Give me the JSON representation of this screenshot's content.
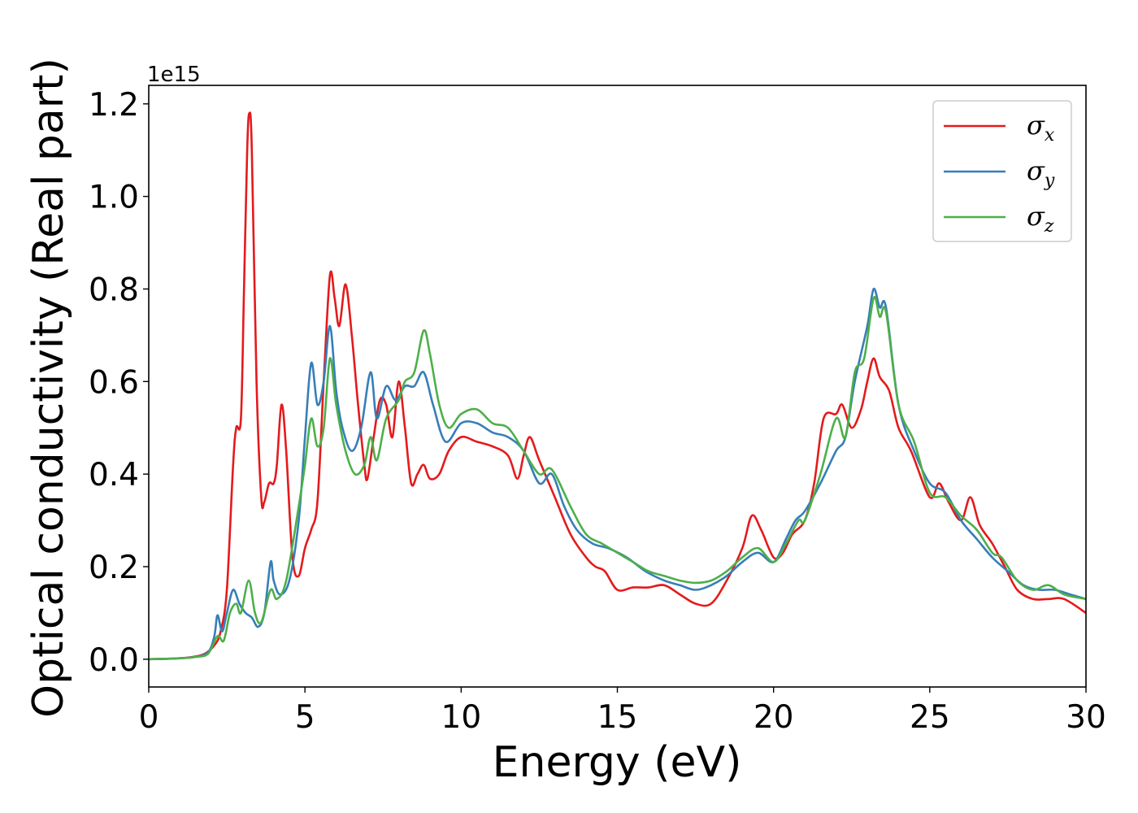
{
  "chart_data": {
    "type": "line",
    "title": "",
    "xlabel": "Energy (eV)",
    "ylabel": "Optical conductivity (Real part)",
    "offset_text": "1e15",
    "xlim": [
      0,
      30
    ],
    "ylim": [
      -0.06,
      1.24
    ],
    "y_scale_factor": 1000000000000000.0,
    "x_ticks": [
      0,
      5,
      10,
      15,
      20,
      25,
      30
    ],
    "x_tick_labels": [
      "0",
      "5",
      "10",
      "15",
      "20",
      "25",
      "30"
    ],
    "y_ticks": [
      0.0,
      0.2,
      0.4,
      0.6,
      0.8,
      1.0,
      1.2
    ],
    "y_tick_labels": [
      "0.0",
      "0.2",
      "0.4",
      "0.6",
      "0.8",
      "1.0",
      "1.2"
    ],
    "grid": false,
    "legend_position": "top-right",
    "series": [
      {
        "name": "σx",
        "symbol": "σ",
        "subscript": "x",
        "color": "#e41a1c",
        "points": [
          [
            0,
            0
          ],
          [
            1,
            0.002
          ],
          [
            1.5,
            0.006
          ],
          [
            1.8,
            0.012
          ],
          [
            2.1,
            0.03
          ],
          [
            2.3,
            0.06
          ],
          [
            2.5,
            0.15
          ],
          [
            2.7,
            0.42
          ],
          [
            2.8,
            0.5
          ],
          [
            2.95,
            0.52
          ],
          [
            3.05,
            0.8
          ],
          [
            3.15,
            1.1
          ],
          [
            3.22,
            1.18
          ],
          [
            3.3,
            1.1
          ],
          [
            3.45,
            0.6
          ],
          [
            3.6,
            0.35
          ],
          [
            3.7,
            0.34
          ],
          [
            3.85,
            0.38
          ],
          [
            4.0,
            0.38
          ],
          [
            4.1,
            0.42
          ],
          [
            4.25,
            0.55
          ],
          [
            4.4,
            0.45
          ],
          [
            4.6,
            0.22
          ],
          [
            4.8,
            0.18
          ],
          [
            5.0,
            0.24
          ],
          [
            5.2,
            0.28
          ],
          [
            5.4,
            0.34
          ],
          [
            5.6,
            0.6
          ],
          [
            5.8,
            0.83
          ],
          [
            5.95,
            0.78
          ],
          [
            6.1,
            0.72
          ],
          [
            6.3,
            0.81
          ],
          [
            6.5,
            0.7
          ],
          [
            6.7,
            0.55
          ],
          [
            6.9,
            0.42
          ],
          [
            7.0,
            0.39
          ],
          [
            7.2,
            0.48
          ],
          [
            7.4,
            0.56
          ],
          [
            7.6,
            0.55
          ],
          [
            7.8,
            0.48
          ],
          [
            8.0,
            0.6
          ],
          [
            8.2,
            0.5
          ],
          [
            8.4,
            0.38
          ],
          [
            8.6,
            0.4
          ],
          [
            8.8,
            0.42
          ],
          [
            9.0,
            0.39
          ],
          [
            9.3,
            0.4
          ],
          [
            9.6,
            0.45
          ],
          [
            10.0,
            0.48
          ],
          [
            10.5,
            0.47
          ],
          [
            11.0,
            0.46
          ],
          [
            11.5,
            0.44
          ],
          [
            11.8,
            0.39
          ],
          [
            12.0,
            0.44
          ],
          [
            12.2,
            0.48
          ],
          [
            12.5,
            0.43
          ],
          [
            13.0,
            0.35
          ],
          [
            13.5,
            0.27
          ],
          [
            14.0,
            0.22
          ],
          [
            14.3,
            0.2
          ],
          [
            14.6,
            0.19
          ],
          [
            15.0,
            0.15
          ],
          [
            15.5,
            0.155
          ],
          [
            16.0,
            0.155
          ],
          [
            16.5,
            0.16
          ],
          [
            17.0,
            0.14
          ],
          [
            17.5,
            0.12
          ],
          [
            18.0,
            0.12
          ],
          [
            18.5,
            0.17
          ],
          [
            19.0,
            0.24
          ],
          [
            19.3,
            0.31
          ],
          [
            19.6,
            0.28
          ],
          [
            20.0,
            0.22
          ],
          [
            20.3,
            0.23
          ],
          [
            20.6,
            0.27
          ],
          [
            21.0,
            0.3
          ],
          [
            21.3,
            0.38
          ],
          [
            21.6,
            0.52
          ],
          [
            22.0,
            0.53
          ],
          [
            22.2,
            0.55
          ],
          [
            22.5,
            0.5
          ],
          [
            22.8,
            0.54
          ],
          [
            23.0,
            0.6
          ],
          [
            23.2,
            0.65
          ],
          [
            23.4,
            0.61
          ],
          [
            23.7,
            0.58
          ],
          [
            24.0,
            0.5
          ],
          [
            24.4,
            0.45
          ],
          [
            25.0,
            0.35
          ],
          [
            25.3,
            0.38
          ],
          [
            25.6,
            0.34
          ],
          [
            26.0,
            0.3
          ],
          [
            26.3,
            0.35
          ],
          [
            26.6,
            0.29
          ],
          [
            27.0,
            0.25
          ],
          [
            27.4,
            0.2
          ],
          [
            27.8,
            0.15
          ],
          [
            28.3,
            0.13
          ],
          [
            28.8,
            0.13
          ],
          [
            29.3,
            0.13
          ],
          [
            30.0,
            0.1
          ]
        ]
      },
      {
        "name": "σy",
        "symbol": "σ",
        "subscript": "y",
        "color": "#377eb8",
        "points": [
          [
            0,
            0
          ],
          [
            1,
            0.002
          ],
          [
            1.5,
            0.005
          ],
          [
            1.9,
            0.015
          ],
          [
            2.1,
            0.05
          ],
          [
            2.2,
            0.095
          ],
          [
            2.35,
            0.06
          ],
          [
            2.5,
            0.1
          ],
          [
            2.7,
            0.15
          ],
          [
            2.9,
            0.12
          ],
          [
            3.1,
            0.1
          ],
          [
            3.3,
            0.09
          ],
          [
            3.5,
            0.07
          ],
          [
            3.7,
            0.1
          ],
          [
            3.9,
            0.21
          ],
          [
            4.0,
            0.17
          ],
          [
            4.2,
            0.14
          ],
          [
            4.5,
            0.17
          ],
          [
            4.8,
            0.3
          ],
          [
            5.0,
            0.48
          ],
          [
            5.2,
            0.64
          ],
          [
            5.4,
            0.55
          ],
          [
            5.6,
            0.6
          ],
          [
            5.8,
            0.72
          ],
          [
            6.0,
            0.58
          ],
          [
            6.2,
            0.5
          ],
          [
            6.5,
            0.45
          ],
          [
            6.8,
            0.5
          ],
          [
            7.1,
            0.62
          ],
          [
            7.3,
            0.52
          ],
          [
            7.6,
            0.59
          ],
          [
            7.9,
            0.56
          ],
          [
            8.2,
            0.59
          ],
          [
            8.5,
            0.59
          ],
          [
            8.8,
            0.62
          ],
          [
            9.1,
            0.55
          ],
          [
            9.5,
            0.47
          ],
          [
            10.0,
            0.51
          ],
          [
            10.5,
            0.51
          ],
          [
            11.0,
            0.49
          ],
          [
            11.5,
            0.48
          ],
          [
            12.0,
            0.45
          ],
          [
            12.5,
            0.38
          ],
          [
            12.9,
            0.4
          ],
          [
            13.3,
            0.33
          ],
          [
            13.7,
            0.28
          ],
          [
            14.2,
            0.25
          ],
          [
            14.7,
            0.24
          ],
          [
            15.3,
            0.22
          ],
          [
            15.9,
            0.19
          ],
          [
            16.5,
            0.17
          ],
          [
            17.0,
            0.16
          ],
          [
            17.5,
            0.15
          ],
          [
            18.0,
            0.16
          ],
          [
            18.5,
            0.18
          ],
          [
            19.0,
            0.21
          ],
          [
            19.5,
            0.23
          ],
          [
            20.0,
            0.21
          ],
          [
            20.4,
            0.26
          ],
          [
            20.7,
            0.3
          ],
          [
            21.0,
            0.32
          ],
          [
            21.5,
            0.38
          ],
          [
            22.0,
            0.45
          ],
          [
            22.3,
            0.48
          ],
          [
            22.6,
            0.6
          ],
          [
            23.0,
            0.72
          ],
          [
            23.2,
            0.8
          ],
          [
            23.4,
            0.76
          ],
          [
            23.6,
            0.76
          ],
          [
            24.0,
            0.55
          ],
          [
            24.5,
            0.45
          ],
          [
            25.0,
            0.38
          ],
          [
            25.5,
            0.36
          ],
          [
            26.0,
            0.3
          ],
          [
            26.5,
            0.26
          ],
          [
            27.0,
            0.22
          ],
          [
            27.5,
            0.19
          ],
          [
            28.0,
            0.16
          ],
          [
            28.5,
            0.15
          ],
          [
            29.0,
            0.15
          ],
          [
            29.5,
            0.14
          ],
          [
            30.0,
            0.13
          ]
        ]
      },
      {
        "name": "σz",
        "symbol": "σ",
        "subscript": "z",
        "color": "#4daf4a",
        "points": [
          [
            0,
            0
          ],
          [
            1,
            0.002
          ],
          [
            1.5,
            0.005
          ],
          [
            1.9,
            0.012
          ],
          [
            2.2,
            0.05
          ],
          [
            2.4,
            0.04
          ],
          [
            2.6,
            0.1
          ],
          [
            2.8,
            0.12
          ],
          [
            2.95,
            0.1
          ],
          [
            3.2,
            0.17
          ],
          [
            3.4,
            0.1
          ],
          [
            3.6,
            0.08
          ],
          [
            3.9,
            0.15
          ],
          [
            4.1,
            0.13
          ],
          [
            4.4,
            0.17
          ],
          [
            4.8,
            0.33
          ],
          [
            5.0,
            0.42
          ],
          [
            5.2,
            0.52
          ],
          [
            5.4,
            0.46
          ],
          [
            5.6,
            0.5
          ],
          [
            5.8,
            0.65
          ],
          [
            6.0,
            0.55
          ],
          [
            6.3,
            0.45
          ],
          [
            6.6,
            0.4
          ],
          [
            6.9,
            0.42
          ],
          [
            7.1,
            0.48
          ],
          [
            7.3,
            0.43
          ],
          [
            7.6,
            0.52
          ],
          [
            8.0,
            0.56
          ],
          [
            8.2,
            0.6
          ],
          [
            8.5,
            0.62
          ],
          [
            8.8,
            0.71
          ],
          [
            9.0,
            0.66
          ],
          [
            9.3,
            0.55
          ],
          [
            9.6,
            0.5
          ],
          [
            10.0,
            0.53
          ],
          [
            10.5,
            0.54
          ],
          [
            11.0,
            0.51
          ],
          [
            11.5,
            0.5
          ],
          [
            12.0,
            0.45
          ],
          [
            12.5,
            0.4
          ],
          [
            12.9,
            0.41
          ],
          [
            13.5,
            0.33
          ],
          [
            14.0,
            0.27
          ],
          [
            14.5,
            0.25
          ],
          [
            15.0,
            0.23
          ],
          [
            15.5,
            0.21
          ],
          [
            16.0,
            0.19
          ],
          [
            16.5,
            0.18
          ],
          [
            17.0,
            0.17
          ],
          [
            17.5,
            0.165
          ],
          [
            18.0,
            0.17
          ],
          [
            18.5,
            0.19
          ],
          [
            19.0,
            0.22
          ],
          [
            19.5,
            0.24
          ],
          [
            20.0,
            0.21
          ],
          [
            20.4,
            0.25
          ],
          [
            20.8,
            0.3
          ],
          [
            21.0,
            0.3
          ],
          [
            21.5,
            0.4
          ],
          [
            22.0,
            0.52
          ],
          [
            22.3,
            0.48
          ],
          [
            22.6,
            0.62
          ],
          [
            22.9,
            0.65
          ],
          [
            23.2,
            0.78
          ],
          [
            23.4,
            0.74
          ],
          [
            23.6,
            0.75
          ],
          [
            24.0,
            0.55
          ],
          [
            24.5,
            0.47
          ],
          [
            25.0,
            0.36
          ],
          [
            25.5,
            0.35
          ],
          [
            26.0,
            0.31
          ],
          [
            26.5,
            0.28
          ],
          [
            27.0,
            0.23
          ],
          [
            27.3,
            0.22
          ],
          [
            27.8,
            0.17
          ],
          [
            28.3,
            0.15
          ],
          [
            28.8,
            0.16
          ],
          [
            29.3,
            0.14
          ],
          [
            30.0,
            0.13
          ]
        ]
      }
    ]
  }
}
